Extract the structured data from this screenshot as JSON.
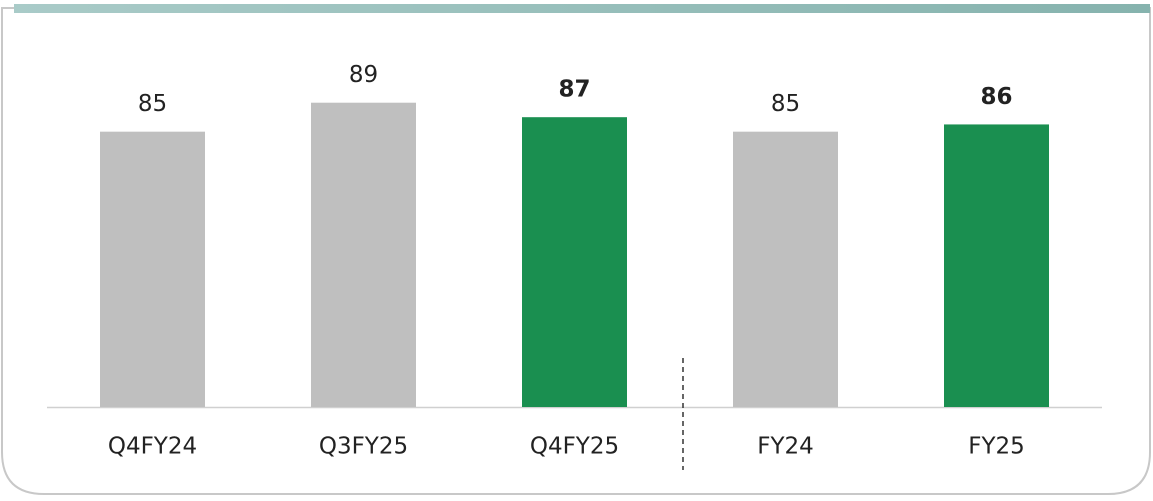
{
  "chart_data": {
    "type": "bar",
    "categories": [
      "Q4FY24",
      "Q3FY25",
      "Q4FY25",
      "FY24",
      "FY25"
    ],
    "values": [
      85,
      89,
      87,
      85,
      86
    ],
    "highlight": [
      false,
      false,
      true,
      false,
      true
    ],
    "color": "#bfbfbf",
    "highlight_color": "#1a8f50",
    "ylim": [
      47,
      100
    ]
  }
}
